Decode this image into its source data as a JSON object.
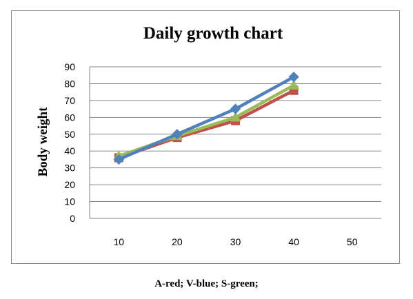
{
  "chart_data": {
    "type": "line",
    "title": "Daily growth chart",
    "xlabel": "",
    "ylabel": "Body weight",
    "x_ticks": [
      "10",
      "20",
      "30",
      "40",
      "50"
    ],
    "y_ticks": [
      "0",
      "10",
      "20",
      "30",
      "40",
      "50",
      "60",
      "70",
      "80",
      "90"
    ],
    "xlim": [
      5,
      55
    ],
    "ylim": [
      0,
      90
    ],
    "grid": "horizontal",
    "legend": "none",
    "x": [
      10,
      20,
      30,
      40
    ],
    "series": [
      {
        "color": "#4f81bd",
        "marker": "diamond",
        "values": [
          35,
          50,
          65,
          84
        ]
      },
      {
        "color": "#c0504d",
        "marker": "square",
        "values": [
          36,
          48,
          58,
          76
        ]
      },
      {
        "color": "#9bbb59",
        "marker": "triangle",
        "values": [
          37,
          49,
          60,
          79
        ]
      }
    ]
  },
  "caption": "A-red; V-blue; S-green;"
}
